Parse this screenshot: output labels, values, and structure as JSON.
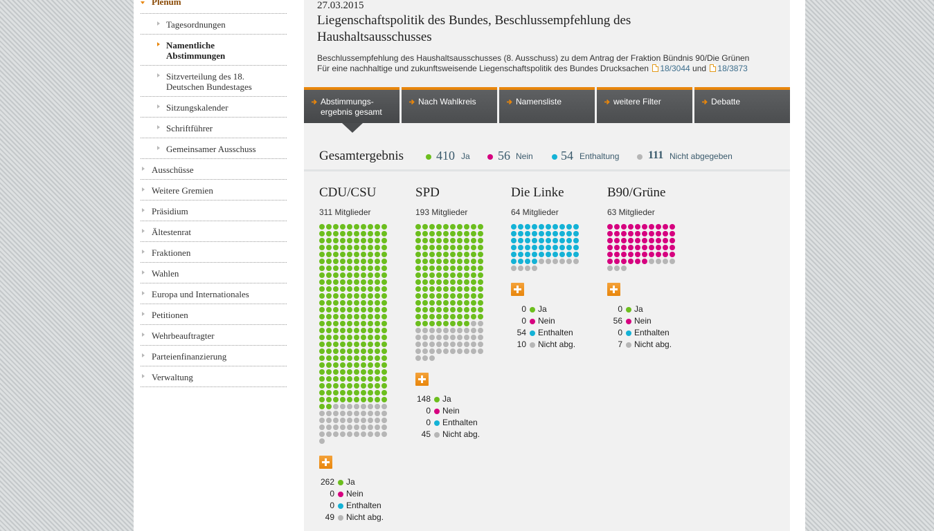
{
  "sidebar": {
    "top": "Plenum",
    "sub_items": [
      {
        "label": "Tagesordnungen",
        "active": false
      },
      {
        "label": "Namentliche Abstimmungen",
        "active": true
      },
      {
        "label": "Sitzverteilung des 18. Deutschen Bundestages",
        "active": false
      },
      {
        "label": "Sitzungskalender",
        "active": false
      },
      {
        "label": "Schriftführer",
        "active": false
      },
      {
        "label": "Gemeinsamer Ausschuss",
        "active": false
      }
    ],
    "items": [
      "Ausschüsse",
      "Weitere Gremien",
      "Präsidium",
      "Ältestenrat",
      "Fraktionen",
      "Wahlen",
      "Europa und Internationales",
      "Petitionen",
      "Wehrbeauftragter",
      "Parteienfinanzierung",
      "Verwaltung"
    ]
  },
  "header": {
    "date": "27.03.2015",
    "title": "Liegenschaftspolitik des Bundes, Beschlussempfehlung des Haushaltsausschusses",
    "desc_line1": "Beschlussempfehlung des Haushaltsausschusses (8. Ausschuss) zu dem Antrag der Fraktion Bündnis 90/Die Grünen",
    "desc_line2": "Für eine nachhaltige und zukunftsweisende Liegenschaftspolitik des Bundes Drucksachen",
    "doc1": "18/3044",
    "and_word": "und",
    "doc2": "18/3873"
  },
  "tabs": [
    {
      "label": "Abstimmungs-ergebnis gesamt",
      "line1": "Abstimmungs-",
      "line2": "ergebnis gesamt",
      "active": true
    },
    {
      "label": "Nach Wahlkreis",
      "active": false
    },
    {
      "label": "Namensliste",
      "active": false
    },
    {
      "label": "weitere Filter",
      "active": false
    },
    {
      "label": "Debatte",
      "active": false
    }
  ],
  "summary": {
    "title": "Gesamtergebnis",
    "ja": {
      "value": "410",
      "label": "Ja"
    },
    "nein": {
      "value": "56",
      "label": "Nein"
    },
    "enthaltung": {
      "value": "54",
      "label": "Enthaltung"
    },
    "nicht": {
      "value": "111",
      "label": "Nicht abgegeben"
    }
  },
  "colors": {
    "ja": "#6cbe1e",
    "nein": "#d6007f",
    "enthaltung": "#14b2d6",
    "nicht": "#b6b6b6",
    "accent": "#e8860c"
  },
  "legend_labels": {
    "ja": "Ja",
    "nein": "Nein",
    "enth": "Enthalten",
    "nicht": "Nicht abg."
  },
  "parties": [
    {
      "name": "CDU/CSU",
      "members": "311 Mitglieder",
      "ja": 262,
      "nein": 0,
      "enth": 0,
      "nicht": 49
    },
    {
      "name": "SPD",
      "members": "193 Mitglieder",
      "ja": 148,
      "nein": 0,
      "enth": 0,
      "nicht": 45
    },
    {
      "name": "Die Linke",
      "members": "64 Mitglieder",
      "ja": 0,
      "nein": 0,
      "enth": 54,
      "nicht": 10
    },
    {
      "name": "B90/Grüne",
      "members": "63 Mitglieder",
      "ja": 0,
      "nein": 56,
      "enth": 0,
      "nicht": 7
    }
  ],
  "icons": {
    "expand": "plus-icon",
    "document": "document-icon",
    "tab_arrow": "arrow-right-icon"
  }
}
